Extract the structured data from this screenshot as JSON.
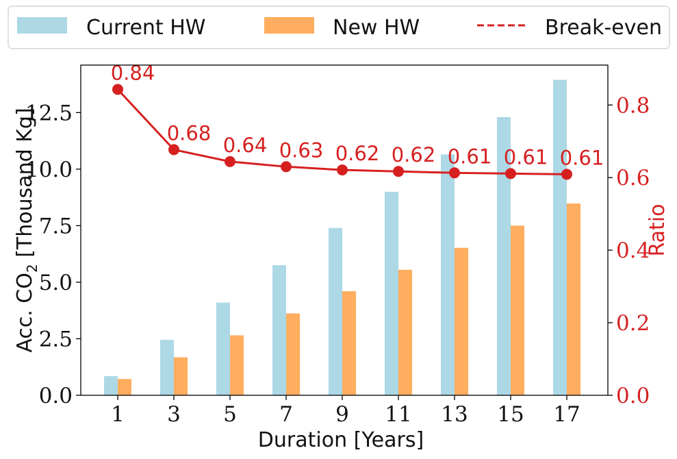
{
  "chart_data": {
    "type": "bar",
    "categories": [
      "1",
      "3",
      "5",
      "7",
      "9",
      "11",
      "13",
      "15",
      "17"
    ],
    "xlabel": "Duration [Years]",
    "ylabel_left": "Acc. CO",
    "ylabel_left_sub": "2",
    "ylabel_left_rest": " [Thousand Kg]",
    "ylabel_right": "Ratio",
    "ylim_left": [
      0,
      14.6
    ],
    "ylim_right": [
      0,
      0.91
    ],
    "yticks_left": [
      "0.0",
      "2.5",
      "5.0",
      "7.5",
      "10.0",
      "12.5"
    ],
    "yticks_right": [
      "0.0",
      "0.2",
      "0.4",
      "0.6",
      "0.8"
    ],
    "series": [
      {
        "name": "Current HW",
        "type": "bar",
        "axis": "left",
        "color": "#add8e6",
        "values": [
          0.85,
          2.45,
          4.1,
          5.75,
          7.4,
          9.0,
          10.65,
          12.3,
          13.95
        ]
      },
      {
        "name": "New HW",
        "type": "bar",
        "axis": "left",
        "color": "#ffad5e",
        "values": [
          0.72,
          1.68,
          2.65,
          3.62,
          4.6,
          5.55,
          6.52,
          7.5,
          8.48
        ]
      },
      {
        "name": "Ratio",
        "type": "line",
        "axis": "right",
        "color": "#d62020",
        "values": [
          0.843,
          0.677,
          0.644,
          0.63,
          0.621,
          0.617,
          0.613,
          0.611,
          0.609
        ],
        "labels": [
          "0.84",
          "0.68",
          "0.64",
          "0.63",
          "0.62",
          "0.62",
          "0.61",
          "0.61",
          "0.61"
        ]
      }
    ],
    "legend": {
      "placement": "top",
      "entries": [
        {
          "label": "Current HW",
          "kind": "patch",
          "color": "#add8e6"
        },
        {
          "label": "New HW",
          "kind": "patch",
          "color": "#ffad5e"
        },
        {
          "label": "Break-even",
          "kind": "dashed-line",
          "color": "#d62020"
        }
      ]
    },
    "grid": false
  }
}
